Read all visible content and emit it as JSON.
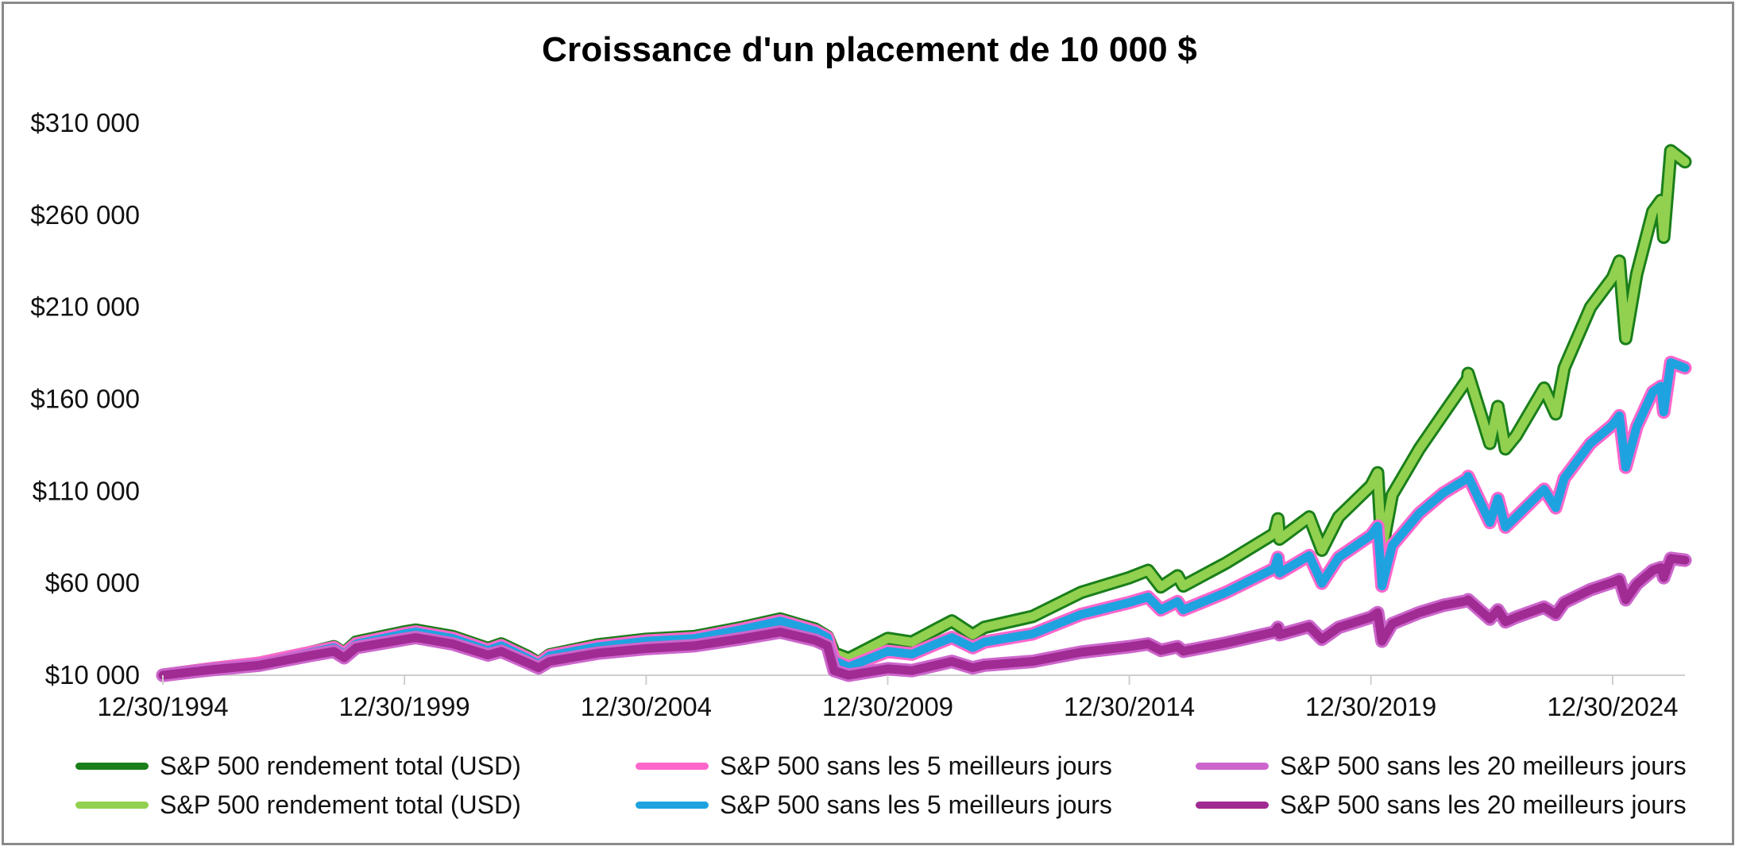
{
  "chart_data": {
    "type": "line",
    "title": "Croissance d'un placement de 10 000 $",
    "xlabel": "",
    "ylabel": "",
    "x_ticks": [
      "12/30/1994",
      "12/30/1999",
      "12/30/2004",
      "12/30/2009",
      "12/30/2014",
      "12/30/2019",
      "12/30/2024"
    ],
    "y_ticks": [
      "$10 000",
      "$60 000",
      "$110 000",
      "$160 000",
      "$210 000",
      "$260 000",
      "$310 000"
    ],
    "xlim": [
      "1994-12-30",
      "2026-06-30"
    ],
    "ylim": [
      10000,
      310000
    ],
    "grid": false,
    "legend_position": "bottom",
    "series": [
      {
        "name": "S&P 500 rendement total (USD)",
        "color": "#1a7f1a",
        "fill_color": "#92d050",
        "points": [
          [
            "1994-12-30",
            10000
          ],
          [
            "1995-12-30",
            13500
          ],
          [
            "1996-12-30",
            16500
          ],
          [
            "1997-12-30",
            22000
          ],
          [
            "1998-07-15",
            25500
          ],
          [
            "1998-09-30",
            22000
          ],
          [
            "1998-12-30",
            28000
          ],
          [
            "1999-12-30",
            33500
          ],
          [
            "2000-03-24",
            34500
          ],
          [
            "2000-12-30",
            31000
          ],
          [
            "2001-09-21",
            24500
          ],
          [
            "2001-12-30",
            27000
          ],
          [
            "2002-07-23",
            20000
          ],
          [
            "2002-10-09",
            16500
          ],
          [
            "2002-12-30",
            21000
          ],
          [
            "2003-12-30",
            26500
          ],
          [
            "2004-12-30",
            29500
          ],
          [
            "2005-12-30",
            31000
          ],
          [
            "2006-12-30",
            36000
          ],
          [
            "2007-10-09",
            40500
          ],
          [
            "2008-06-30",
            35000
          ],
          [
            "2008-09-30",
            31000
          ],
          [
            "2008-11-20",
            22000
          ],
          [
            "2009-03-09",
            19000
          ],
          [
            "2009-12-30",
            30000
          ],
          [
            "2010-07-01",
            28000
          ],
          [
            "2010-12-30",
            35000
          ],
          [
            "2011-04-29",
            39500
          ],
          [
            "2011-10-03",
            32000
          ],
          [
            "2011-12-30",
            36000
          ],
          [
            "2012-12-30",
            42000
          ],
          [
            "2013-12-30",
            55000
          ],
          [
            "2014-12-30",
            63000
          ],
          [
            "2015-05-21",
            67000
          ],
          [
            "2015-08-25",
            58000
          ],
          [
            "2015-12-30",
            64000
          ],
          [
            "2016-02-11",
            58500
          ],
          [
            "2016-12-30",
            71000
          ],
          [
            "2017-12-30",
            87000
          ],
          [
            "2018-01-26",
            95000
          ],
          [
            "2018-02-08",
            84000
          ],
          [
            "2018-09-20",
            96000
          ],
          [
            "2018-12-24",
            78000
          ],
          [
            "2019-04-30",
            96000
          ],
          [
            "2019-12-30",
            113000
          ],
          [
            "2020-02-19",
            120000
          ],
          [
            "2020-03-23",
            78000
          ],
          [
            "2020-06-08",
            108000
          ],
          [
            "2020-12-30",
            133000
          ],
          [
            "2021-06-30",
            152000
          ],
          [
            "2021-12-30",
            171000
          ],
          [
            "2022-01-03",
            174000
          ],
          [
            "2022-06-16",
            136000
          ],
          [
            "2022-08-16",
            156000
          ],
          [
            "2022-10-12",
            133000
          ],
          [
            "2022-12-30",
            140000
          ],
          [
            "2023-07-31",
            166000
          ],
          [
            "2023-10-27",
            152000
          ],
          [
            "2023-12-30",
            177000
          ],
          [
            "2024-07-16",
            210000
          ],
          [
            "2024-12-30",
            226000
          ],
          [
            "2025-02-19",
            235000
          ],
          [
            "2025-04-08",
            193000
          ],
          [
            "2025-06-30",
            228000
          ],
          [
            "2025-10-30",
            262000
          ],
          [
            "2025-12-30",
            268000
          ],
          [
            "2026-01-20",
            248000
          ],
          [
            "2026-03-15",
            295000
          ],
          [
            "2026-06-30",
            289000
          ]
        ]
      },
      {
        "name": "S&P 500 sans les 5 meilleurs jours",
        "color": "#ff66cc",
        "fill_color": "#1fa3e0",
        "points": [
          [
            "1994-12-30",
            10000
          ],
          [
            "1995-12-30",
            13500
          ],
          [
            "1996-12-30",
            16500
          ],
          [
            "1997-12-30",
            22000
          ],
          [
            "1998-07-15",
            25000
          ],
          [
            "1998-09-30",
            21500
          ],
          [
            "1998-12-30",
            27000
          ],
          [
            "1999-12-30",
            32500
          ],
          [
            "2000-03-24",
            33500
          ],
          [
            "2000-12-30",
            30000
          ],
          [
            "2001-09-21",
            23500
          ],
          [
            "2001-12-30",
            26000
          ],
          [
            "2002-07-23",
            19000
          ],
          [
            "2002-10-09",
            16000
          ],
          [
            "2002-12-30",
            20500
          ],
          [
            "2003-12-30",
            25500
          ],
          [
            "2004-12-30",
            28500
          ],
          [
            "2005-12-30",
            30000
          ],
          [
            "2006-12-30",
            35000
          ],
          [
            "2007-10-09",
            39500
          ],
          [
            "2008-06-30",
            34000
          ],
          [
            "2008-09-30",
            30500
          ],
          [
            "2008-11-20",
            18000
          ],
          [
            "2009-03-09",
            14500
          ],
          [
            "2009-12-30",
            23000
          ],
          [
            "2010-07-01",
            21500
          ],
          [
            "2010-12-30",
            27000
          ],
          [
            "2011-04-29",
            30500
          ],
          [
            "2011-10-03",
            25000
          ],
          [
            "2011-12-30",
            28000
          ],
          [
            "2012-12-30",
            32500
          ],
          [
            "2013-12-30",
            43000
          ],
          [
            "2014-12-30",
            49500
          ],
          [
            "2015-05-21",
            52500
          ],
          [
            "2015-08-25",
            45500
          ],
          [
            "2015-12-30",
            50000
          ],
          [
            "2016-02-11",
            45500
          ],
          [
            "2016-12-30",
            55000
          ],
          [
            "2017-12-30",
            68000
          ],
          [
            "2018-01-26",
            74000
          ],
          [
            "2018-02-08",
            65500
          ],
          [
            "2018-09-20",
            75000
          ],
          [
            "2018-12-24",
            60000
          ],
          [
            "2019-04-30",
            74000
          ],
          [
            "2019-12-30",
            86000
          ],
          [
            "2020-02-19",
            91000
          ],
          [
            "2020-03-23",
            58500
          ],
          [
            "2020-06-08",
            80500
          ],
          [
            "2020-12-30",
            98000
          ],
          [
            "2021-06-30",
            109000
          ],
          [
            "2021-12-30",
            117000
          ],
          [
            "2022-01-03",
            118000
          ],
          [
            "2022-06-16",
            93000
          ],
          [
            "2022-08-16",
            106000
          ],
          [
            "2022-10-12",
            90500
          ],
          [
            "2022-12-30",
            96000
          ],
          [
            "2023-07-31",
            111000
          ],
          [
            "2023-10-27",
            101000
          ],
          [
            "2023-12-30",
            117000
          ],
          [
            "2024-07-16",
            136000
          ],
          [
            "2024-12-30",
            146000
          ],
          [
            "2025-02-19",
            151000
          ],
          [
            "2025-04-08",
            123000
          ],
          [
            "2025-06-30",
            145000
          ],
          [
            "2025-10-30",
            164000
          ],
          [
            "2025-12-30",
            167000
          ],
          [
            "2026-01-20",
            153000
          ],
          [
            "2026-03-15",
            180000
          ],
          [
            "2026-06-30",
            177000
          ]
        ]
      },
      {
        "name": "S&P 500 sans les 20 meilleurs jours",
        "color": "#cc66cc",
        "fill_color": "#a02b93",
        "points": [
          [
            "1994-12-30",
            10000
          ],
          [
            "1995-12-30",
            13000
          ],
          [
            "1996-12-30",
            15500
          ],
          [
            "1997-12-30",
            20500
          ],
          [
            "1998-07-15",
            23000
          ],
          [
            "1998-09-30",
            19500
          ],
          [
            "1998-12-30",
            25000
          ],
          [
            "1999-12-30",
            29500
          ],
          [
            "2000-03-24",
            30500
          ],
          [
            "2000-12-30",
            27000
          ],
          [
            "2001-09-21",
            21000
          ],
          [
            "2001-12-30",
            23000
          ],
          [
            "2002-07-23",
            16500
          ],
          [
            "2002-10-09",
            14000
          ],
          [
            "2002-12-30",
            17500
          ],
          [
            "2003-12-30",
            22000
          ],
          [
            "2004-12-30",
            24500
          ],
          [
            "2005-12-30",
            26000
          ],
          [
            "2006-12-30",
            30000
          ],
          [
            "2007-10-09",
            33500
          ],
          [
            "2008-06-30",
            29000
          ],
          [
            "2008-09-30",
            26000
          ],
          [
            "2008-11-20",
            12500
          ],
          [
            "2009-03-09",
            10000
          ],
          [
            "2009-12-30",
            13500
          ],
          [
            "2010-07-01",
            12500
          ],
          [
            "2010-12-30",
            15500
          ],
          [
            "2011-04-29",
            17500
          ],
          [
            "2011-10-03",
            14000
          ],
          [
            "2011-12-30",
            15500
          ],
          [
            "2012-12-30",
            17500
          ],
          [
            "2013-12-30",
            22500
          ],
          [
            "2014-12-30",
            25500
          ],
          [
            "2015-05-21",
            27000
          ],
          [
            "2015-08-25",
            23500
          ],
          [
            "2015-12-30",
            25500
          ],
          [
            "2016-02-11",
            23000
          ],
          [
            "2016-12-30",
            27500
          ],
          [
            "2017-12-30",
            33500
          ],
          [
            "2018-01-26",
            36000
          ],
          [
            "2018-02-08",
            32000
          ],
          [
            "2018-09-20",
            36500
          ],
          [
            "2018-12-24",
            29500
          ],
          [
            "2019-04-30",
            36000
          ],
          [
            "2019-12-30",
            41500
          ],
          [
            "2020-02-19",
            44000
          ],
          [
            "2020-03-23",
            28500
          ],
          [
            "2020-06-08",
            38000
          ],
          [
            "2020-12-30",
            44000
          ],
          [
            "2021-06-30",
            48000
          ],
          [
            "2021-12-30",
            50500
          ],
          [
            "2022-01-03",
            51000
          ],
          [
            "2022-06-16",
            40500
          ],
          [
            "2022-08-16",
            45500
          ],
          [
            "2022-10-12",
            39000
          ],
          [
            "2022-12-30",
            41500
          ],
          [
            "2023-07-31",
            47000
          ],
          [
            "2023-10-27",
            43000
          ],
          [
            "2023-12-30",
            49500
          ],
          [
            "2024-07-16",
            56500
          ],
          [
            "2024-12-30",
            60500
          ],
          [
            "2025-02-19",
            62000
          ],
          [
            "2025-04-08",
            51000
          ],
          [
            "2025-06-30",
            59500
          ],
          [
            "2025-10-30",
            67000
          ],
          [
            "2025-12-30",
            68500
          ],
          [
            "2026-01-20",
            63000
          ],
          [
            "2026-03-15",
            73500
          ],
          [
            "2026-06-30",
            72500
          ]
        ]
      }
    ],
    "legend": [
      {
        "label": "S&P 500 rendement total (USD)",
        "color": "#1a7f1a"
      },
      {
        "label": "S&P 500 sans les 5 meilleurs jours",
        "color": "#ff66cc"
      },
      {
        "label": "S&P 500 sans les 20 meilleurs jours",
        "color": "#cc66cc"
      },
      {
        "label": "S&P 500 rendement total (USD)",
        "color": "#92d050"
      },
      {
        "label": "S&P 500 sans les 5 meilleurs jours",
        "color": "#1fa3e0"
      },
      {
        "label": "S&P 500 sans les 20 meilleurs jours",
        "color": "#a02b93"
      }
    ]
  }
}
